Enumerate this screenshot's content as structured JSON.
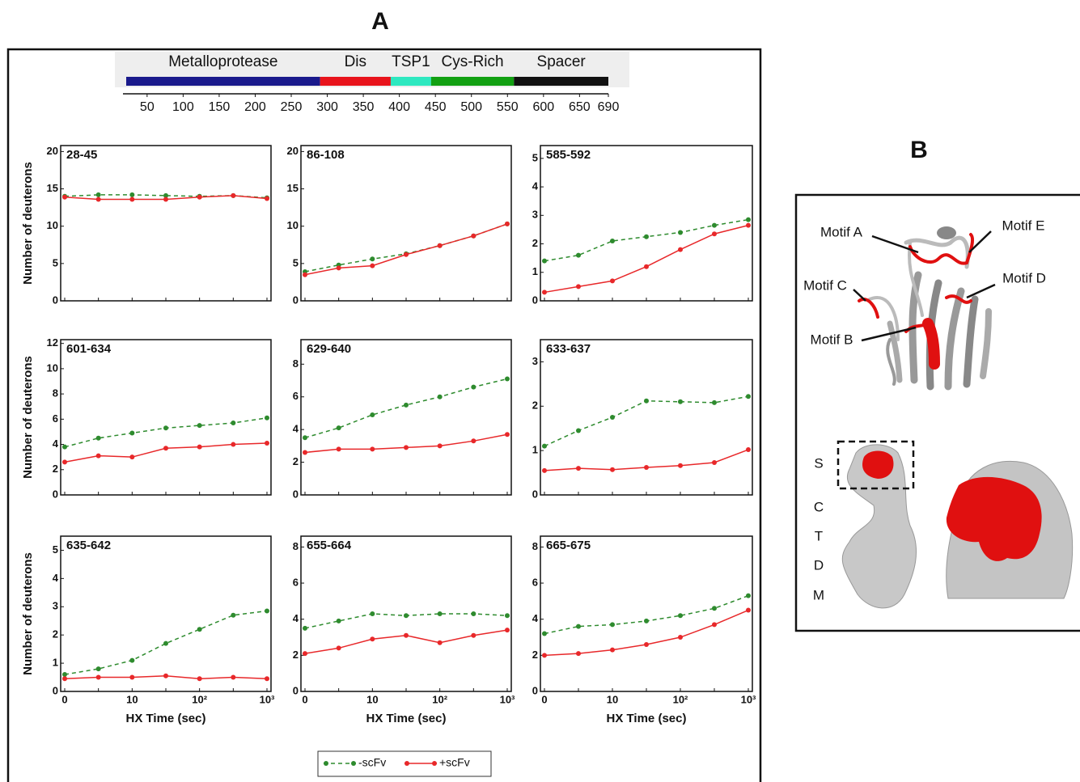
{
  "panel_a_label": "A",
  "panel_b_label": "B",
  "domain_map": {
    "domains": [
      {
        "name": "Metalloprotease",
        "start": 21,
        "end": 290,
        "color": "#1a1a8c"
      },
      {
        "name": "Dis",
        "start": 290,
        "end": 388,
        "color": "#e8141c"
      },
      {
        "name": "TSP1",
        "start": 388,
        "end": 444,
        "color": "#2ee8c0"
      },
      {
        "name": "Cys-Rich",
        "start": 444,
        "end": 559,
        "color": "#12a012"
      },
      {
        "name": "Spacer",
        "start": 559,
        "end": 690,
        "color": "#111111"
      }
    ],
    "xlim": [
      21,
      690
    ],
    "xticks": [
      50,
      100,
      150,
      200,
      250,
      300,
      350,
      400,
      450,
      500,
      550,
      600,
      650,
      690
    ]
  },
  "legend": [
    {
      "name": "-scFv",
      "color": "#2e8b2e",
      "dashed": true
    },
    {
      "name": "+scFv",
      "color": "#e8282a",
      "dashed": false
    }
  ],
  "chart_data": [
    {
      "type": "line",
      "title": "28-45",
      "y_label": "Number of deuterons",
      "categories": [
        null,
        null,
        null,
        null,
        null,
        null,
        null
      ],
      "series": [
        {
          "values": [
            14.0,
            14.2,
            14.2,
            14.1,
            14.0,
            14.1,
            13.8
          ]
        },
        {
          "values": [
            13.9,
            13.6,
            13.6,
            13.6,
            13.9,
            14.1,
            13.7
          ]
        }
      ],
      "ylim": [
        0,
        20.8
      ],
      "yticks": [
        0,
        5,
        10,
        15,
        20
      ]
    },
    {
      "type": "line",
      "title": "86-108",
      "categories": [
        null,
        null,
        null,
        null,
        null,
        null,
        null
      ],
      "series": [
        {
          "values": [
            3.9,
            4.8,
            5.6,
            6.3,
            7.4,
            8.7,
            10.3
          ]
        },
        {
          "values": [
            3.5,
            4.4,
            4.7,
            6.2,
            7.4,
            8.7,
            10.3
          ]
        }
      ],
      "ylim": [
        0,
        20.8
      ],
      "yticks": [
        0,
        5,
        10,
        15,
        20
      ]
    },
    {
      "type": "line",
      "title": "585-592",
      "categories": [
        null,
        null,
        null,
        null,
        null,
        null,
        null
      ],
      "series": [
        {
          "values": [
            1.4,
            1.6,
            2.1,
            2.25,
            2.4,
            2.65,
            2.85
          ]
        },
        {
          "values": [
            0.3,
            0.5,
            0.7,
            1.2,
            1.8,
            2.35,
            2.65
          ]
        }
      ],
      "ylim": [
        0,
        5.45
      ],
      "yticks": [
        0,
        1,
        2,
        3,
        4,
        5
      ]
    },
    {
      "type": "line",
      "title": "601-634",
      "y_label": "Number of deuterons",
      "categories": [
        null,
        null,
        null,
        null,
        null,
        null,
        null
      ],
      "series": [
        {
          "values": [
            3.8,
            4.5,
            4.9,
            5.3,
            5.5,
            5.7,
            6.1
          ]
        },
        {
          "values": [
            2.6,
            3.1,
            3.0,
            3.7,
            3.8,
            4.0,
            4.1
          ]
        }
      ],
      "ylim": [
        0,
        12.3
      ],
      "yticks": [
        0,
        2,
        4,
        6,
        8,
        10,
        12
      ]
    },
    {
      "type": "line",
      "title": "629-640",
      "categories": [
        null,
        null,
        null,
        null,
        null,
        null,
        null
      ],
      "series": [
        {
          "values": [
            3.5,
            4.1,
            4.9,
            5.5,
            6.0,
            6.6,
            7.1
          ]
        },
        {
          "values": [
            2.6,
            2.8,
            2.8,
            2.9,
            3.0,
            3.3,
            3.7
          ]
        }
      ],
      "ylim": [
        0,
        9.5
      ],
      "yticks": [
        0,
        2,
        4,
        6,
        8
      ]
    },
    {
      "type": "line",
      "title": "633-637",
      "categories": [
        null,
        null,
        null,
        null,
        null,
        null,
        null
      ],
      "series": [
        {
          "values": [
            1.1,
            1.45,
            1.75,
            2.12,
            2.1,
            2.08,
            2.22
          ]
        },
        {
          "values": [
            0.55,
            0.6,
            0.57,
            0.62,
            0.66,
            0.73,
            1.02
          ]
        }
      ],
      "ylim": [
        0,
        3.5
      ],
      "yticks": [
        0,
        1,
        2,
        3
      ]
    },
    {
      "type": "line",
      "title": "635-642",
      "y_label": "Number of deuterons",
      "x_label": "HX Time (sec)",
      "categories": [
        "0",
        null,
        "10",
        null,
        "10²",
        null,
        "10³"
      ],
      "series": [
        {
          "values": [
            0.6,
            0.8,
            1.1,
            1.7,
            2.2,
            2.7,
            2.85
          ]
        },
        {
          "values": [
            0.45,
            0.5,
            0.5,
            0.55,
            0.45,
            0.5,
            0.45
          ]
        }
      ],
      "ylim": [
        0,
        5.5
      ],
      "yticks": [
        0,
        1,
        2,
        3,
        4,
        5
      ]
    },
    {
      "type": "line",
      "title": "655-664",
      "x_label": "HX Time (sec)",
      "categories": [
        "0",
        null,
        "10",
        null,
        "10²",
        null,
        "10³"
      ],
      "series": [
        {
          "values": [
            3.5,
            3.9,
            4.3,
            4.2,
            4.3,
            4.3,
            4.2
          ]
        },
        {
          "values": [
            2.1,
            2.4,
            2.9,
            3.1,
            2.7,
            3.1,
            3.4
          ]
        }
      ],
      "ylim": [
        0,
        8.6
      ],
      "yticks": [
        0,
        2,
        4,
        6,
        8
      ]
    },
    {
      "type": "line",
      "title": "665-675",
      "x_label": "HX Time (sec)",
      "categories": [
        "0",
        null,
        "10",
        null,
        "10²",
        null,
        "10³"
      ],
      "series": [
        {
          "values": [
            3.2,
            3.6,
            3.7,
            3.9,
            4.2,
            4.6,
            5.3
          ]
        },
        {
          "values": [
            2.0,
            2.1,
            2.3,
            2.6,
            3.0,
            3.7,
            4.5
          ]
        }
      ],
      "ylim": [
        0,
        8.6
      ],
      "yticks": [
        0,
        2,
        4,
        6,
        8
      ]
    }
  ],
  "structure": {
    "motifs": [
      "Motif A",
      "Motif B",
      "Motif C",
      "Motif D",
      "Motif E"
    ],
    "domain_letters": [
      "S",
      "C",
      "T",
      "D",
      "M"
    ]
  }
}
